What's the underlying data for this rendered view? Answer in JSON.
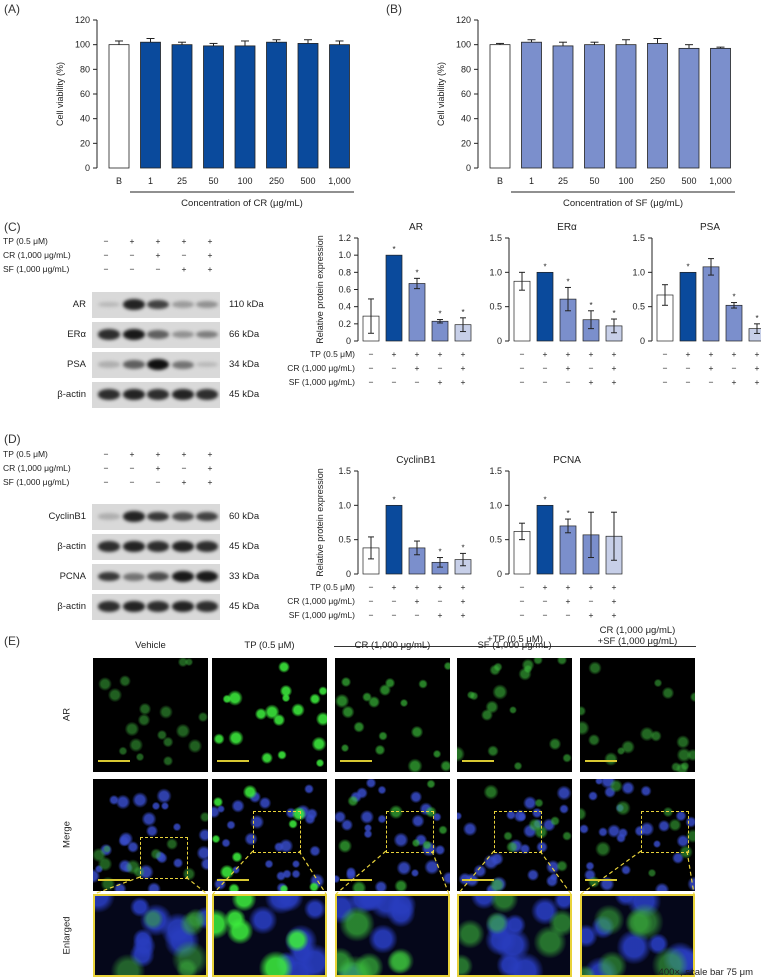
{
  "panels": [
    "(A)",
    "(B)",
    "(C)",
    "(D)",
    "(E)"
  ],
  "colors": {
    "cr": "#0a4a9c",
    "sf": "#7b8fcc",
    "tp": "#0a4a9c",
    "combo": "#c7cfe8",
    "vehicle": "#ffffff",
    "zoom_box": "#e8d23a",
    "scale_bar": "#d8c832"
  },
  "viability": [
    {
      "panel": "(A)",
      "ylabel": "Cell viability (%)",
      "xlabel": "Concentration of CR (μg/mL)",
      "ylim": [
        0,
        120
      ],
      "yticks": [
        0,
        20,
        40,
        60,
        80,
        100,
        120
      ],
      "categories": [
        "B",
        "1",
        "25",
        "50",
        "100",
        "250",
        "500",
        "1,000"
      ],
      "values": [
        100,
        102,
        100,
        99,
        99,
        102,
        101,
        100
      ],
      "errors": [
        3,
        3,
        2,
        2,
        4,
        2,
        3,
        3
      ],
      "bar_colors": [
        "#ffffff",
        "#0a4a9c",
        "#0a4a9c",
        "#0a4a9c",
        "#0a4a9c",
        "#0a4a9c",
        "#0a4a9c",
        "#0a4a9c"
      ]
    },
    {
      "panel": "(B)",
      "ylabel": "Cell viability (%)",
      "xlabel": "Concentration of SF (μg/mL)",
      "ylim": [
        0,
        120
      ],
      "yticks": [
        0,
        20,
        40,
        60,
        80,
        100,
        120
      ],
      "categories": [
        "B",
        "1",
        "25",
        "50",
        "100",
        "250",
        "500",
        "1,000"
      ],
      "values": [
        100,
        102,
        99,
        100,
        100,
        101,
        97,
        97
      ],
      "errors": [
        1,
        2,
        3,
        2,
        4,
        4,
        3,
        1
      ],
      "bar_colors": [
        "#ffffff",
        "#7b8fcc",
        "#7b8fcc",
        "#7b8fcc",
        "#7b8fcc",
        "#7b8fcc",
        "#7b8fcc",
        "#7b8fcc"
      ]
    }
  ],
  "treatment_table": {
    "rows": [
      {
        "label": "TP (0.5 μM)",
        "marks": [
          "−",
          "+",
          "+",
          "+",
          "+"
        ]
      },
      {
        "label": "CR (1,000 μg/mL)",
        "marks": [
          "−",
          "−",
          "+",
          "−",
          "+"
        ]
      },
      {
        "label": "SF (1,000 μg/mL)",
        "marks": [
          "−",
          "−",
          "−",
          "+",
          "+"
        ]
      }
    ]
  },
  "westernC": [
    {
      "name": "AR",
      "kda": "110 kDa"
    },
    {
      "name": "ERα",
      "kda": "66 kDa"
    },
    {
      "name": "PSA",
      "kda": "34 kDa"
    },
    {
      "name": "β-actin",
      "kda": "45 kDa"
    }
  ],
  "westernD": [
    {
      "name": "CyclinB1",
      "kda": "60 kDa"
    },
    {
      "name": "β-actin",
      "kda": "45 kDa"
    },
    {
      "name": "PCNA",
      "kda": "33 kDa"
    },
    {
      "name": "β-actin",
      "kda": "45 kDa"
    }
  ],
  "chart_data": [
    {
      "type": "bar",
      "title": "AR",
      "ylabel": "Relative protein expression",
      "ylim": [
        0,
        1.2
      ],
      "yticks": [
        "0",
        "0.2",
        "0.4",
        "0.6",
        "0.8",
        "1.0",
        "1.2"
      ],
      "values": [
        0.29,
        1.0,
        0.67,
        0.23,
        0.19
      ],
      "errors": [
        0.2,
        0,
        0.06,
        0.02,
        0.08
      ],
      "stars": [
        "",
        "*",
        "*",
        "*",
        "*"
      ]
    },
    {
      "type": "bar",
      "title": "ERα",
      "ylabel": "",
      "ylim": [
        0,
        1.5
      ],
      "yticks": [
        "0",
        "0.5",
        "1.0",
        "1.5"
      ],
      "values": [
        0.87,
        1.0,
        0.61,
        0.31,
        0.22
      ],
      "errors": [
        0.13,
        0,
        0.17,
        0.13,
        0.1
      ],
      "stars": [
        "",
        "*",
        "*",
        "*",
        "*"
      ]
    },
    {
      "type": "bar",
      "title": "PSA",
      "ylabel": "",
      "ylim": [
        0,
        1.5
      ],
      "yticks": [
        "0",
        "0.5",
        "1.0",
        "1.5"
      ],
      "values": [
        0.67,
        1.0,
        1.08,
        0.52,
        0.18
      ],
      "errors": [
        0.15,
        0,
        0.12,
        0.04,
        0.07
      ],
      "stars": [
        "",
        "*",
        "",
        "*",
        "*"
      ]
    },
    {
      "type": "bar",
      "title": "CyclinB1",
      "ylabel": "Relative protein expression",
      "ylim": [
        0,
        1.5
      ],
      "yticks": [
        "0",
        "0.5",
        "1.0",
        "1.5"
      ],
      "values": [
        0.38,
        1.0,
        0.38,
        0.17,
        0.21
      ],
      "errors": [
        0.16,
        0,
        0.1,
        0.07,
        0.09
      ],
      "stars": [
        "",
        "*",
        "",
        "*",
        "*"
      ]
    },
    {
      "type": "bar",
      "title": "PCNA",
      "ylabel": "",
      "ylim": [
        0,
        1.5
      ],
      "yticks": [
        "0",
        "0.5",
        "1.0",
        "1.5"
      ],
      "values": [
        0.62,
        1.0,
        0.7,
        0.57,
        0.55
      ],
      "errors": [
        0.12,
        0,
        0.1,
        0.33,
        0.35
      ],
      "stars": [
        "",
        "*",
        "*",
        "",
        ""
      ]
    }
  ],
  "fluorescence": {
    "group_label": "+TP (0.5 μM)",
    "columns": [
      "Vehicle",
      "TP (0.5 μM)",
      "CR (1,000 μg/mL)",
      "SF (1,000 μg/mL)",
      "CR (1,000 μg/mL)\n+SF (1,000 μg/mL)"
    ],
    "rows": [
      "AR",
      "Merge",
      "Enlarged"
    ],
    "caption": "400×, scale bar 75 μm"
  }
}
